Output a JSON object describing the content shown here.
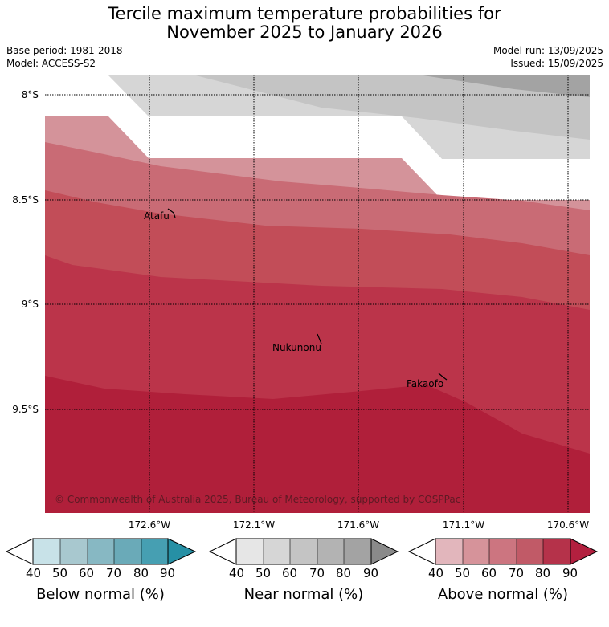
{
  "title": {
    "line1": "Tercile maximum temperature probabilities for",
    "line2": "November 2025 to January 2026"
  },
  "info": {
    "base_period": "Base period: 1981-2018",
    "model": "Model: ACCESS-S2",
    "model_run": "Model run: 13/09/2025",
    "issued": "Issued: 15/09/2025"
  },
  "map": {
    "lat_labels": [
      "8°S",
      "8.5°S",
      "9°S",
      "9.5°S"
    ],
    "lon_labels": [
      "172.6°W",
      "172.1°W",
      "171.6°W",
      "171.1°W",
      "170.6°W"
    ],
    "places": [
      {
        "name": "Atafu",
        "lat": -8.58,
        "lon": -172.49
      },
      {
        "name": "Nukunonu",
        "lat": -9.18,
        "lon": -171.86
      },
      {
        "name": "Fakaofo",
        "lat": -9.38,
        "lon": -171.24
      }
    ],
    "copyright": "© Commonwealth of Australia 2025, Bureau of Meteorology, supported by COSPPac",
    "near_normal_shading": [
      "#d6d6d6",
      "#c4c4c4",
      "#a3a3a3"
    ],
    "above_normal_shading": [
      "#d4939a",
      "#c96b75",
      "#c24d58",
      "#bb344a",
      "#b01f3a"
    ]
  },
  "colorbars": [
    {
      "title": "Below normal (%)",
      "ticks": [
        "40",
        "50",
        "60",
        "70",
        "80",
        "90"
      ],
      "colors": [
        "#c8e2e8",
        "#a8c8cf",
        "#87b8c3",
        "#6aaab8",
        "#469fb2",
        "#2690a5"
      ]
    },
    {
      "title": "Near normal (%)",
      "ticks": [
        "40",
        "50",
        "60",
        "70",
        "80",
        "90"
      ],
      "colors": [
        "#e6e6e6",
        "#d6d6d6",
        "#c4c4c4",
        "#b3b3b3",
        "#a3a3a3",
        "#8a8a8a"
      ]
    },
    {
      "title": "Above normal (%)",
      "ticks": [
        "40",
        "50",
        "60",
        "70",
        "80",
        "90"
      ],
      "colors": [
        "#e2b6bc",
        "#d6939a",
        "#cc7580",
        "#c15a67",
        "#b5324a",
        "#b3203f"
      ]
    }
  ]
}
